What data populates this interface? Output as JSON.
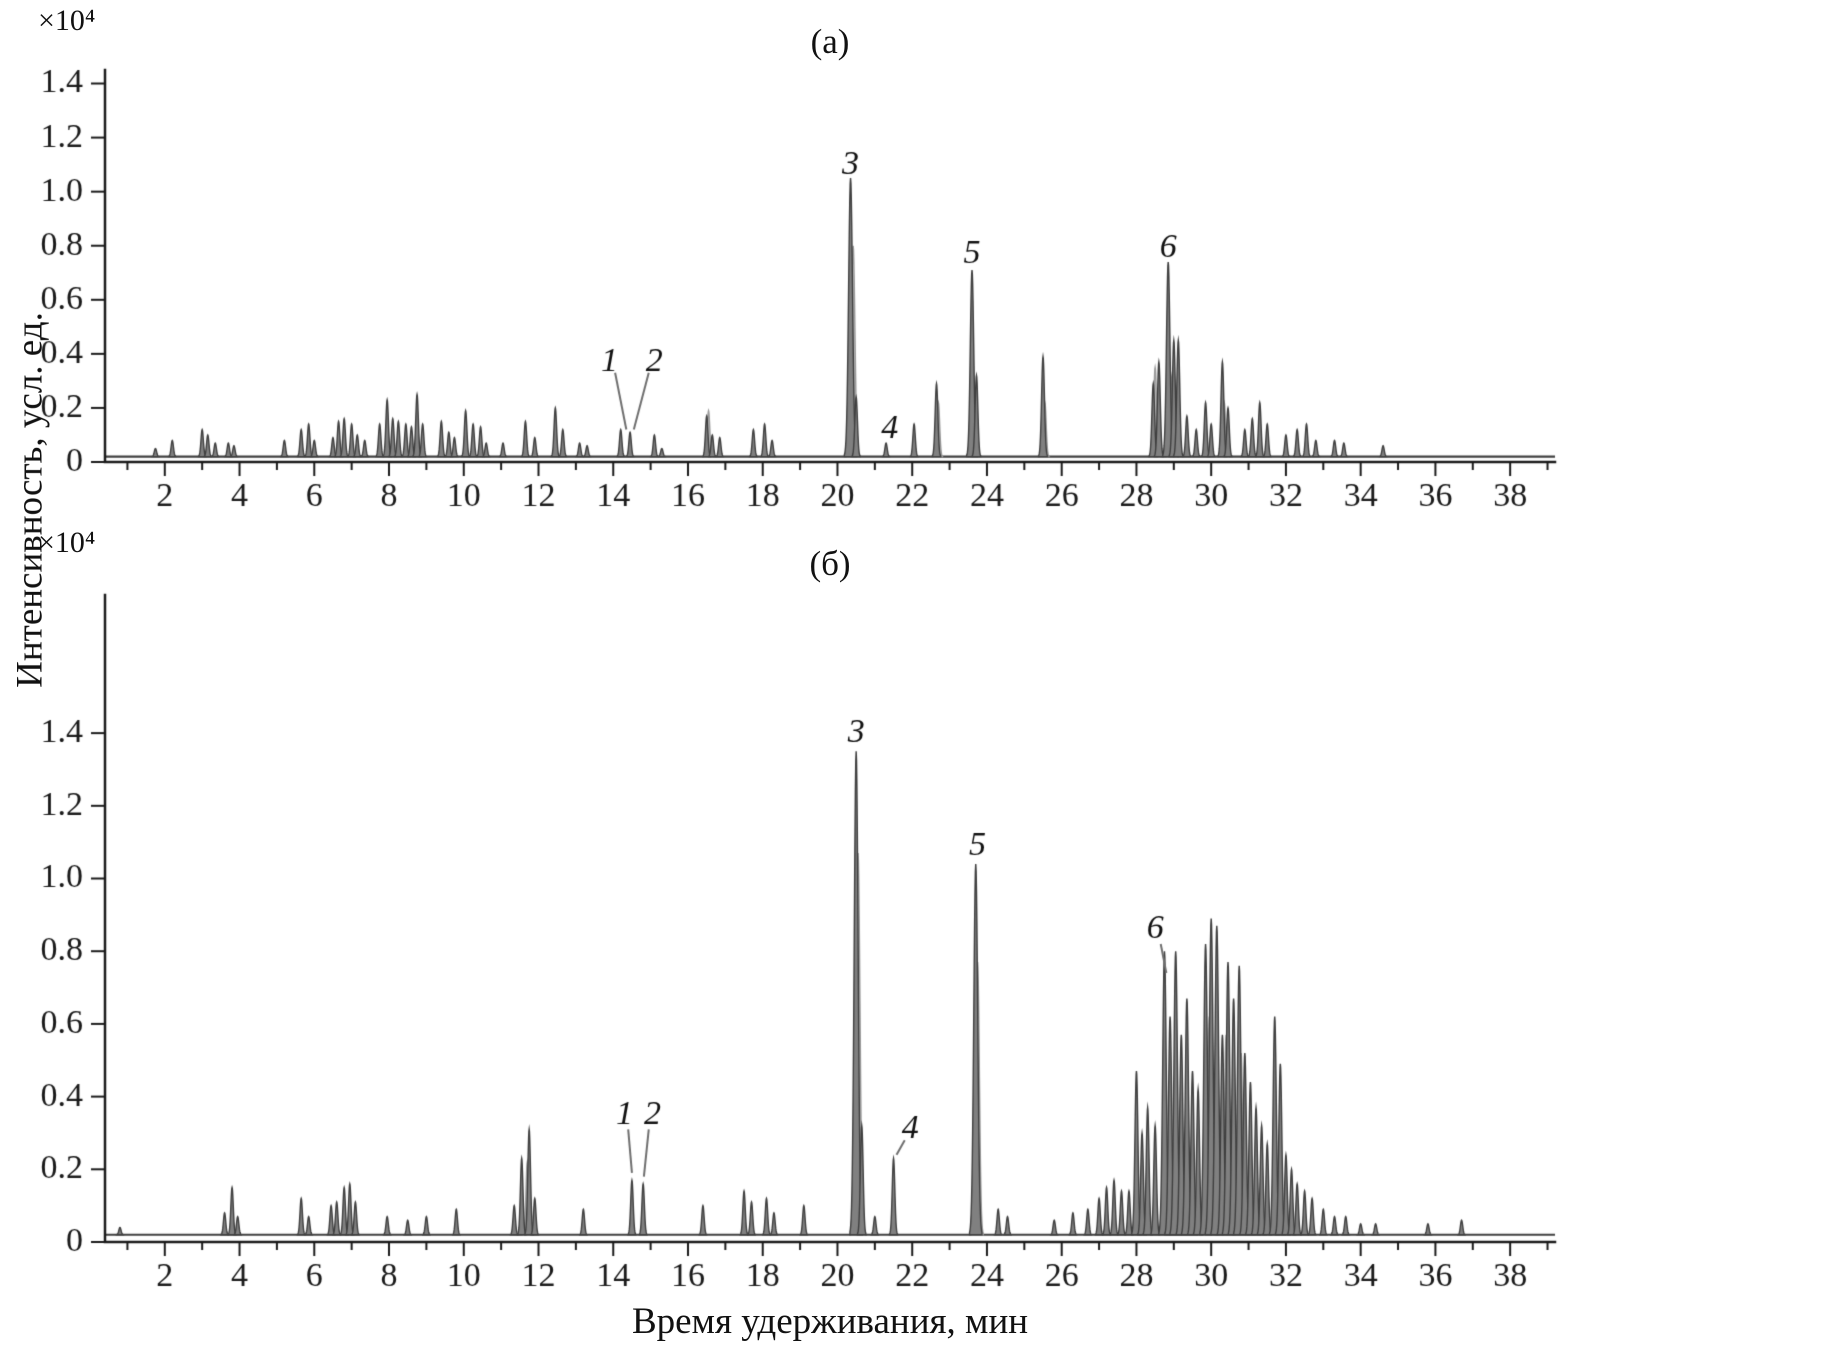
{
  "scale_label": "×10⁴",
  "colors": {
    "axis": "#1a1a1a",
    "text": "#111111",
    "line": "#3f3f3f",
    "fill": "#808080",
    "line_light": "#9a9a9a",
    "fill_light": "#c6c6c6",
    "leader": "#6e6e6e",
    "background": "#ffffff"
  },
  "chart_data": [
    {
      "type": "area",
      "panel": "a",
      "title": "(а)",
      "xlabel": "Время удерживания, мин",
      "ylabel": "Интенсивность, усл. ед.",
      "scale": "×10⁴",
      "xlim": [
        0.4,
        39.2
      ],
      "ylim": [
        0,
        1.45
      ],
      "baseline": 0.02,
      "x_ticks": [
        2,
        4,
        6,
        8,
        10,
        12,
        14,
        16,
        18,
        20,
        22,
        24,
        26,
        28,
        30,
        32,
        34,
        36,
        38
      ],
      "y_ticks": [
        {
          "v": 0,
          "t": "0"
        },
        {
          "v": 0.2,
          "t": "0.2"
        },
        {
          "v": 0.4,
          "t": "0.4"
        },
        {
          "v": 0.6,
          "t": "0.6"
        },
        {
          "v": 0.8,
          "t": "0.8"
        },
        {
          "v": 1.0,
          "t": "1.0"
        },
        {
          "v": 1.2,
          "t": "1.2"
        },
        {
          "v": 1.4,
          "t": "1.4"
        }
      ],
      "peaks": [
        [
          1.75,
          0.03
        ],
        [
          2.2,
          0.06
        ],
        [
          3.0,
          0.1
        ],
        [
          3.15,
          0.08
        ],
        [
          3.35,
          0.05
        ],
        [
          3.7,
          0.05
        ],
        [
          3.85,
          0.04
        ],
        [
          5.2,
          0.06
        ],
        [
          5.65,
          0.1
        ],
        [
          5.85,
          0.12
        ],
        [
          6.0,
          0.06
        ],
        [
          6.5,
          0.07
        ],
        [
          6.65,
          0.13
        ],
        [
          6.8,
          0.14
        ],
        [
          7.0,
          0.12
        ],
        [
          7.15,
          0.08
        ],
        [
          7.35,
          0.06
        ],
        [
          7.75,
          0.12
        ],
        [
          7.95,
          0.21
        ],
        [
          8.1,
          0.14
        ],
        [
          8.25,
          0.13
        ],
        [
          8.45,
          0.12
        ],
        [
          8.6,
          0.11
        ],
        [
          8.75,
          0.23
        ],
        [
          8.9,
          0.12
        ],
        [
          9.4,
          0.13
        ],
        [
          9.6,
          0.09
        ],
        [
          9.75,
          0.07
        ],
        [
          10.05,
          0.17
        ],
        [
          10.25,
          0.12
        ],
        [
          10.45,
          0.11
        ],
        [
          10.6,
          0.05
        ],
        [
          11.05,
          0.05
        ],
        [
          11.65,
          0.13
        ],
        [
          11.9,
          0.07
        ],
        [
          12.45,
          0.18
        ],
        [
          12.65,
          0.1
        ],
        [
          13.1,
          0.05
        ],
        [
          13.3,
          0.04
        ],
        [
          14.2,
          0.1
        ],
        [
          14.45,
          0.09
        ],
        [
          15.1,
          0.08
        ],
        [
          15.3,
          0.03
        ],
        [
          16.5,
          0.15
        ],
        [
          16.65,
          0.08
        ],
        [
          16.85,
          0.07
        ],
        [
          17.75,
          0.1
        ],
        [
          18.05,
          0.12
        ],
        [
          18.25,
          0.06
        ],
        [
          20.35,
          1.03
        ],
        [
          20.5,
          0.22
        ],
        [
          21.3,
          0.05
        ],
        [
          22.05,
          0.12
        ],
        [
          22.65,
          0.27
        ],
        [
          23.6,
          0.69
        ],
        [
          23.72,
          0.3
        ],
        [
          25.5,
          0.37
        ],
        [
          28.45,
          0.27
        ],
        [
          28.6,
          0.35
        ],
        [
          28.85,
          0.72
        ],
        [
          29.0,
          0.43
        ],
        [
          29.12,
          0.43
        ],
        [
          29.35,
          0.15
        ],
        [
          29.6,
          0.1
        ],
        [
          29.85,
          0.2
        ],
        [
          30.0,
          0.12
        ],
        [
          30.3,
          0.35
        ],
        [
          30.45,
          0.18
        ],
        [
          30.9,
          0.1
        ],
        [
          31.1,
          0.14
        ],
        [
          31.3,
          0.2
        ],
        [
          31.5,
          0.12
        ],
        [
          32.0,
          0.08
        ],
        [
          32.3,
          0.1
        ],
        [
          32.55,
          0.12
        ],
        [
          32.8,
          0.06
        ],
        [
          33.3,
          0.06
        ],
        [
          33.55,
          0.05
        ],
        [
          34.6,
          0.04
        ]
      ],
      "peaks_light": [
        [
          16.55,
          0.17
        ],
        [
          20.42,
          0.78
        ],
        [
          22.7,
          0.2
        ],
        [
          25.55,
          0.2
        ],
        [
          28.5,
          0.33
        ],
        [
          28.95,
          0.3
        ],
        [
          30.35,
          0.2
        ]
      ],
      "annotations": [
        {
          "text": "1",
          "x": 13.9,
          "y": 0.37,
          "leader": [
            [
              14.05,
              0.33
            ],
            [
              14.35,
              0.12
            ]
          ]
        },
        {
          "text": "2",
          "x": 15.1,
          "y": 0.37,
          "leader": [
            [
              14.95,
              0.33
            ],
            [
              14.55,
              0.12
            ]
          ]
        },
        {
          "text": "3",
          "x": 20.35,
          "y": 1.1
        },
        {
          "text": "4",
          "x": 21.4,
          "y": 0.12
        },
        {
          "text": "5",
          "x": 23.6,
          "y": 0.77
        },
        {
          "text": "6",
          "x": 28.85,
          "y": 0.79
        }
      ]
    },
    {
      "type": "area",
      "panel": "b",
      "title": "(б)",
      "xlabel": "Время удерживания, мин",
      "ylabel": "Интенсивность, усл. ед.",
      "scale": "×10⁴",
      "xlim": [
        0.4,
        39.2
      ],
      "ylim": [
        0,
        1.78
      ],
      "baseline": 0.02,
      "x_ticks": [
        2,
        4,
        6,
        8,
        10,
        12,
        14,
        16,
        18,
        20,
        22,
        24,
        26,
        28,
        30,
        32,
        34,
        36,
        38
      ],
      "y_ticks": [
        {
          "v": 0,
          "t": "0"
        },
        {
          "v": 0.2,
          "t": "0.2"
        },
        {
          "v": 0.4,
          "t": "0.4"
        },
        {
          "v": 0.6,
          "t": "0.6"
        },
        {
          "v": 0.8,
          "t": "0.8"
        },
        {
          "v": 1.0,
          "t": "1.0"
        },
        {
          "v": 1.2,
          "t": "1.2"
        },
        {
          "v": 1.4,
          "t": "1.4"
        }
      ],
      "peaks": [
        [
          0.8,
          0.02
        ],
        [
          3.6,
          0.06
        ],
        [
          3.8,
          0.13
        ],
        [
          3.95,
          0.05
        ],
        [
          5.65,
          0.1
        ],
        [
          5.85,
          0.05
        ],
        [
          6.45,
          0.08
        ],
        [
          6.6,
          0.09
        ],
        [
          6.8,
          0.13
        ],
        [
          6.95,
          0.14
        ],
        [
          7.1,
          0.09
        ],
        [
          7.95,
          0.05
        ],
        [
          8.5,
          0.04
        ],
        [
          9.0,
          0.05
        ],
        [
          9.8,
          0.07
        ],
        [
          11.35,
          0.08
        ],
        [
          11.55,
          0.21
        ],
        [
          11.75,
          0.29
        ],
        [
          11.9,
          0.1
        ],
        [
          13.2,
          0.07
        ],
        [
          14.5,
          0.15
        ],
        [
          14.8,
          0.14
        ],
        [
          16.4,
          0.08
        ],
        [
          17.5,
          0.12
        ],
        [
          17.7,
          0.09
        ],
        [
          18.1,
          0.1
        ],
        [
          18.3,
          0.06
        ],
        [
          19.1,
          0.08
        ],
        [
          20.5,
          1.33
        ],
        [
          20.65,
          0.3
        ],
        [
          21.0,
          0.05
        ],
        [
          21.5,
          0.21
        ],
        [
          23.7,
          1.02
        ],
        [
          24.3,
          0.07
        ],
        [
          24.55,
          0.05
        ],
        [
          25.8,
          0.04
        ],
        [
          26.3,
          0.06
        ],
        [
          26.7,
          0.07
        ],
        [
          27.0,
          0.1
        ],
        [
          27.2,
          0.13
        ],
        [
          27.4,
          0.15
        ],
        [
          27.6,
          0.12
        ],
        [
          27.8,
          0.12
        ],
        [
          28.0,
          0.45
        ],
        [
          28.15,
          0.28
        ],
        [
          28.3,
          0.35
        ],
        [
          28.5,
          0.3
        ],
        [
          28.75,
          0.78
        ],
        [
          28.9,
          0.6
        ],
        [
          29.05,
          0.78
        ],
        [
          29.2,
          0.55
        ],
        [
          29.35,
          0.65
        ],
        [
          29.5,
          0.45
        ],
        [
          29.65,
          0.4
        ],
        [
          29.85,
          0.8
        ],
        [
          30.0,
          0.87
        ],
        [
          30.15,
          0.85
        ],
        [
          30.3,
          0.55
        ],
        [
          30.45,
          0.75
        ],
        [
          30.6,
          0.65
        ],
        [
          30.75,
          0.74
        ],
        [
          30.9,
          0.5
        ],
        [
          31.05,
          0.42
        ],
        [
          31.2,
          0.35
        ],
        [
          31.35,
          0.3
        ],
        [
          31.5,
          0.25
        ],
        [
          31.7,
          0.6
        ],
        [
          31.85,
          0.47
        ],
        [
          32.0,
          0.22
        ],
        [
          32.15,
          0.18
        ],
        [
          32.3,
          0.14
        ],
        [
          32.5,
          0.12
        ],
        [
          32.7,
          0.1
        ],
        [
          33.0,
          0.07
        ],
        [
          33.3,
          0.05
        ],
        [
          33.6,
          0.05
        ],
        [
          34.0,
          0.03
        ],
        [
          34.4,
          0.03
        ],
        [
          35.8,
          0.03
        ],
        [
          36.7,
          0.04
        ]
      ],
      "peaks_light": [
        [
          11.7,
          0.2
        ],
        [
          20.55,
          1.05
        ],
        [
          23.75,
          0.75
        ],
        [
          29.95,
          0.6
        ],
        [
          30.4,
          0.55
        ],
        [
          30.8,
          0.5
        ]
      ],
      "annotations": [
        {
          "text": "1",
          "x": 14.3,
          "y": 0.35,
          "leader": [
            [
              14.4,
              0.31
            ],
            [
              14.5,
              0.19
            ]
          ]
        },
        {
          "text": "2",
          "x": 15.05,
          "y": 0.35,
          "leader": [
            [
              14.95,
              0.31
            ],
            [
              14.82,
              0.18
            ]
          ]
        },
        {
          "text": "3",
          "x": 20.5,
          "y": 1.4
        },
        {
          "text": "4",
          "x": 21.95,
          "y": 0.31,
          "leader": [
            [
              21.8,
              0.28
            ],
            [
              21.58,
              0.24
            ]
          ]
        },
        {
          "text": "5",
          "x": 23.75,
          "y": 1.09
        },
        {
          "text": "6",
          "x": 28.5,
          "y": 0.86,
          "leader": [
            [
              28.65,
              0.82
            ],
            [
              28.8,
              0.74
            ]
          ]
        }
      ]
    }
  ]
}
